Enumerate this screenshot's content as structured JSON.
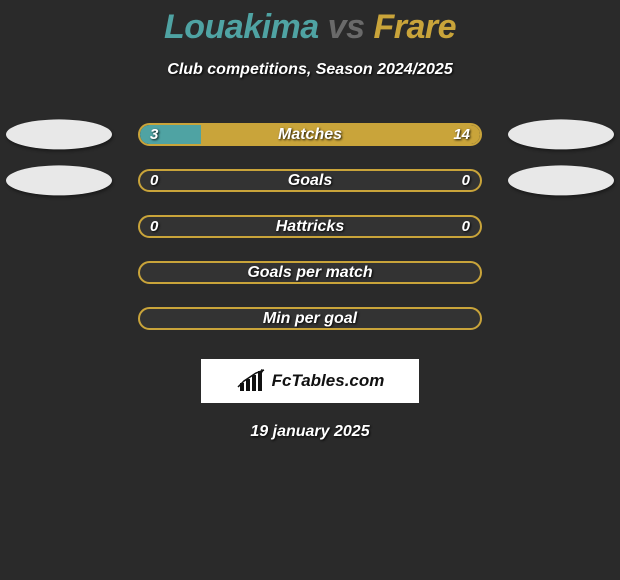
{
  "background_color": "#2a2a2a",
  "title": {
    "player1": "Louakima",
    "vs": "vs",
    "player2": "Frare",
    "p1_color": "#4fa3a3",
    "vs_color": "#6a6a6a",
    "p2_color": "#c9a43a",
    "fontsize": 34
  },
  "subtitle": "Club competitions, Season 2024/2025",
  "player_colors": {
    "left": "#4fa3a3",
    "right": "#c9a43a"
  },
  "ellipse_color": "#e8e8e8",
  "rows": [
    {
      "label": "Matches",
      "left_value": "3",
      "right_value": "14",
      "left_pct": 18,
      "right_pct": 82,
      "border_color": "#c9a43a",
      "show_ellipses": true,
      "show_values": true
    },
    {
      "label": "Goals",
      "left_value": "0",
      "right_value": "0",
      "left_pct": 0,
      "right_pct": 0,
      "border_color": "#c9a43a",
      "show_ellipses": true,
      "show_values": true
    },
    {
      "label": "Hattricks",
      "left_value": "0",
      "right_value": "0",
      "left_pct": 0,
      "right_pct": 0,
      "border_color": "#c9a43a",
      "show_ellipses": false,
      "show_values": true
    },
    {
      "label": "Goals per match",
      "left_value": "",
      "right_value": "",
      "left_pct": 0,
      "right_pct": 0,
      "border_color": "#c9a43a",
      "show_ellipses": false,
      "show_values": false
    },
    {
      "label": "Min per goal",
      "left_value": "",
      "right_value": "",
      "left_pct": 0,
      "right_pct": 0,
      "border_color": "#c9a43a",
      "show_ellipses": false,
      "show_values": false
    }
  ],
  "logo_text": "FcTables.com",
  "date": "19 january 2025",
  "text_color": "#ffffff"
}
